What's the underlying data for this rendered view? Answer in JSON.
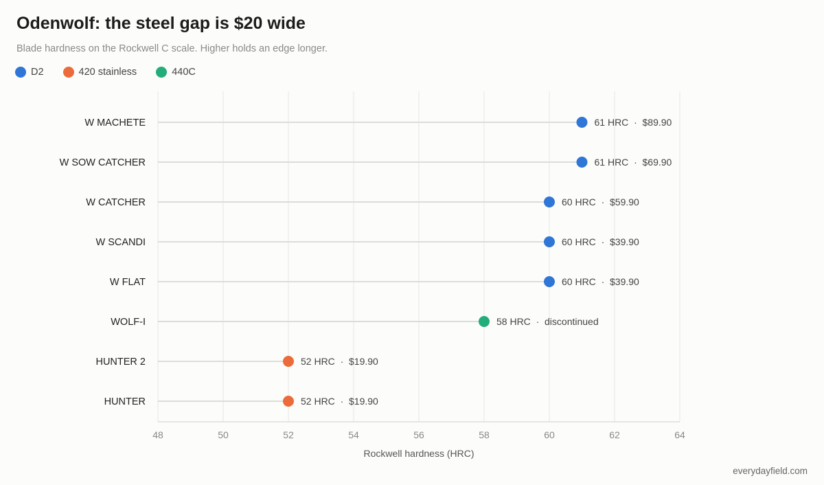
{
  "header": {
    "title": "Odenwolf: the steel gap is $20 wide",
    "subtitle": "Blade hardness on the Rockwell C scale. Higher holds an edge longer."
  },
  "footer": {
    "source": "everydayfield.com"
  },
  "chart_data": {
    "type": "scatter",
    "title": "Odenwolf: the steel gap is $20 wide",
    "subtitle": "Blade hardness on the Rockwell C scale. Higher holds an edge longer.",
    "xlabel": "Rockwell hardness (HRC)",
    "ylabel": "",
    "xlim": [
      48,
      64
    ],
    "xticks": [
      48,
      50,
      52,
      54,
      56,
      58,
      60,
      62,
      64
    ],
    "grid": true,
    "legend_placement": "top-left",
    "legend": [
      {
        "name": "D2",
        "color": "#2f76d6"
      },
      {
        "name": "420 stainless",
        "color": "#ec6b3a"
      },
      {
        "name": "440C",
        "color": "#22ad7a"
      }
    ],
    "items": [
      {
        "name": "W MACHETE",
        "hrc": 61,
        "steel": "D2",
        "price": "$89.90"
      },
      {
        "name": "W SOW CATCHER",
        "hrc": 61,
        "steel": "D2",
        "price": "$69.90"
      },
      {
        "name": "W CATCHER",
        "hrc": 60,
        "steel": "D2",
        "price": "$59.90"
      },
      {
        "name": "W SCANDI",
        "hrc": 60,
        "steel": "D2",
        "price": "$39.90"
      },
      {
        "name": "W FLAT",
        "hrc": 60,
        "steel": "D2",
        "price": "$39.90"
      },
      {
        "name": "WOLF-I",
        "hrc": 58,
        "steel": "440C",
        "price": "discontinued"
      },
      {
        "name": "HUNTER 2",
        "hrc": 52,
        "steel": "420 stainless",
        "price": "$19.90"
      },
      {
        "name": "HUNTER",
        "hrc": 52,
        "steel": "420 stainless",
        "price": "$19.90"
      }
    ],
    "value_label_suffix": " HRC",
    "separator": "·"
  }
}
